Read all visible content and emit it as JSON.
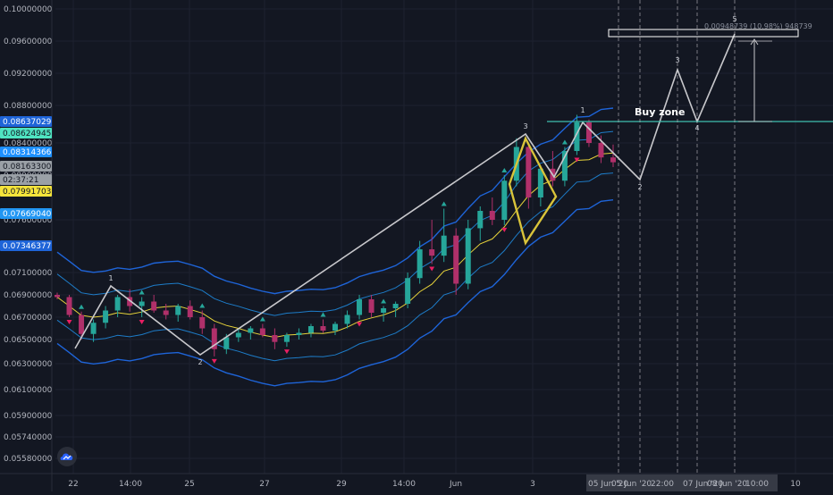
{
  "colors": {
    "background": "#131722",
    "grid": "#1e2230",
    "axis_text": "#b2b5be",
    "candle_up": "#26a69a",
    "candle_down": "#b0306a",
    "band_outer": "#1e64d8",
    "band_mid": "#2196f3",
    "ma_yellow": "#e6d23a",
    "elliott": "#c8c8cc",
    "pattern": "#d9c43a",
    "buy_zone": "#3fbfae",
    "marker_up": "#26a69a",
    "marker_down": "#e91e63"
  },
  "annotations": {
    "buy_zone": "Buy zone",
    "measure": "0.00948739 (10.98%) 948739"
  },
  "price_badges": [
    {
      "value": "0.08637029",
      "bg": "#1e64d8",
      "fg": "#ffffff"
    },
    {
      "value": "0.08624945",
      "bg": "#4fe3c1",
      "fg": "#131722"
    },
    {
      "value": "0.08314366",
      "bg": "#1e90ff",
      "fg": "#ffffff"
    },
    {
      "value": "0.08163300",
      "bg": "#9aa0a6",
      "fg": "#131722"
    },
    {
      "value": "02:37:21",
      "bg": "#9aa0a6",
      "fg": "#131722"
    },
    {
      "value": "0.07991703",
      "bg": "#f5e43b",
      "fg": "#131722"
    },
    {
      "value": "0.07669040",
      "bg": "#2196f3",
      "fg": "#ffffff"
    },
    {
      "value": "0.07346377",
      "bg": "#1e64d8",
      "fg": "#ffffff"
    }
  ],
  "x_time_badges": [
    "05 Jun '20",
    "05 Jun '20",
    "22:00",
    "07 Jun '20",
    "08 Jun '20",
    "10:00"
  ],
  "chart_data": {
    "type": "candlestick",
    "y_ticks": [
      "0.10000000",
      "0.09600000",
      "0.09200000",
      "0.08800000",
      "0.08400000",
      "0.08000000",
      "0.07600000",
      "0.07100000",
      "0.06900000",
      "0.06700000",
      "0.06500000",
      "0.06300000",
      "0.06100000",
      "0.05900000",
      "0.05740000",
      "0.05580000"
    ],
    "x_ticks": [
      "22",
      "14:00",
      "25",
      "27",
      "29",
      "14:00",
      "Jun",
      "3",
      "10"
    ],
    "candles": [
      {
        "o": 0.069,
        "h": 0.0692,
        "l": 0.0686,
        "c": 0.0688
      },
      {
        "o": 0.0688,
        "h": 0.069,
        "l": 0.067,
        "c": 0.0672
      },
      {
        "o": 0.0672,
        "h": 0.0675,
        "l": 0.065,
        "c": 0.0655
      },
      {
        "o": 0.0655,
        "h": 0.0668,
        "l": 0.0648,
        "c": 0.0665
      },
      {
        "o": 0.0665,
        "h": 0.068,
        "l": 0.066,
        "c": 0.0676
      },
      {
        "o": 0.0676,
        "h": 0.069,
        "l": 0.067,
        "c": 0.0688
      },
      {
        "o": 0.0688,
        "h": 0.0695,
        "l": 0.0675,
        "c": 0.068
      },
      {
        "o": 0.068,
        "h": 0.0688,
        "l": 0.067,
        "c": 0.0684
      },
      {
        "o": 0.0684,
        "h": 0.069,
        "l": 0.0674,
        "c": 0.0676
      },
      {
        "o": 0.0676,
        "h": 0.0682,
        "l": 0.0668,
        "c": 0.0672
      },
      {
        "o": 0.0672,
        "h": 0.0682,
        "l": 0.0666,
        "c": 0.068
      },
      {
        "o": 0.068,
        "h": 0.0685,
        "l": 0.0668,
        "c": 0.067
      },
      {
        "o": 0.067,
        "h": 0.0676,
        "l": 0.0655,
        "c": 0.066
      },
      {
        "o": 0.066,
        "h": 0.0664,
        "l": 0.0636,
        "c": 0.0642
      },
      {
        "o": 0.0642,
        "h": 0.0655,
        "l": 0.0638,
        "c": 0.0652
      },
      {
        "o": 0.0652,
        "h": 0.066,
        "l": 0.0648,
        "c": 0.0656
      },
      {
        "o": 0.0656,
        "h": 0.0662,
        "l": 0.065,
        "c": 0.066
      },
      {
        "o": 0.066,
        "h": 0.0664,
        "l": 0.0652,
        "c": 0.0654
      },
      {
        "o": 0.0654,
        "h": 0.066,
        "l": 0.0642,
        "c": 0.0648
      },
      {
        "o": 0.0648,
        "h": 0.0656,
        "l": 0.0644,
        "c": 0.0654
      },
      {
        "o": 0.0654,
        "h": 0.066,
        "l": 0.065,
        "c": 0.0656
      },
      {
        "o": 0.0656,
        "h": 0.0664,
        "l": 0.0652,
        "c": 0.0662
      },
      {
        "o": 0.0662,
        "h": 0.0668,
        "l": 0.0656,
        "c": 0.0658
      },
      {
        "o": 0.0658,
        "h": 0.0666,
        "l": 0.0654,
        "c": 0.0664
      },
      {
        "o": 0.0664,
        "h": 0.0676,
        "l": 0.066,
        "c": 0.0672
      },
      {
        "o": 0.0672,
        "h": 0.069,
        "l": 0.0668,
        "c": 0.0686
      },
      {
        "o": 0.0686,
        "h": 0.069,
        "l": 0.067,
        "c": 0.0674
      },
      {
        "o": 0.0674,
        "h": 0.068,
        "l": 0.0666,
        "c": 0.0678
      },
      {
        "o": 0.0678,
        "h": 0.0684,
        "l": 0.067,
        "c": 0.0682
      },
      {
        "o": 0.0682,
        "h": 0.071,
        "l": 0.0678,
        "c": 0.0705
      },
      {
        "o": 0.0705,
        "h": 0.074,
        "l": 0.07,
        "c": 0.0732
      },
      {
        "o": 0.0732,
        "h": 0.076,
        "l": 0.0718,
        "c": 0.0726
      },
      {
        "o": 0.0726,
        "h": 0.077,
        "l": 0.072,
        "c": 0.0745
      },
      {
        "o": 0.0745,
        "h": 0.0752,
        "l": 0.069,
        "c": 0.07
      },
      {
        "o": 0.07,
        "h": 0.076,
        "l": 0.0695,
        "c": 0.0752
      },
      {
        "o": 0.0752,
        "h": 0.0772,
        "l": 0.074,
        "c": 0.0768
      },
      {
        "o": 0.0768,
        "h": 0.078,
        "l": 0.0755,
        "c": 0.076
      },
      {
        "o": 0.076,
        "h": 0.08,
        "l": 0.0755,
        "c": 0.0795
      },
      {
        "o": 0.0795,
        "h": 0.0845,
        "l": 0.079,
        "c": 0.0835
      },
      {
        "o": 0.0835,
        "h": 0.084,
        "l": 0.077,
        "c": 0.078
      },
      {
        "o": 0.078,
        "h": 0.0812,
        "l": 0.0772,
        "c": 0.0808
      },
      {
        "o": 0.0808,
        "h": 0.083,
        "l": 0.079,
        "c": 0.0795
      },
      {
        "o": 0.0795,
        "h": 0.0835,
        "l": 0.079,
        "c": 0.083
      },
      {
        "o": 0.083,
        "h": 0.087,
        "l": 0.0825,
        "c": 0.0862
      },
      {
        "o": 0.0862,
        "h": 0.0865,
        "l": 0.0835,
        "c": 0.084
      },
      {
        "o": 0.084,
        "h": 0.0848,
        "l": 0.0815,
        "c": 0.0822
      },
      {
        "o": 0.0822,
        "h": 0.0838,
        "l": 0.081,
        "c": 0.0816
      }
    ]
  }
}
